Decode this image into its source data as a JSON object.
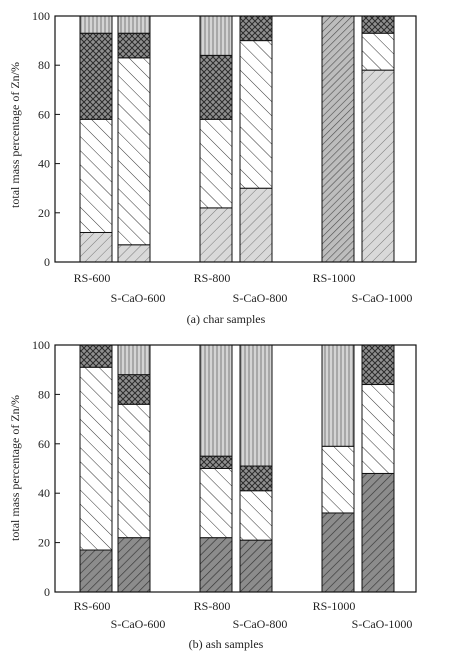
{
  "chart_data": [
    {
      "type": "bar",
      "stacked": true,
      "caption": "(a) char samples",
      "ylabel": "total mass percentage of Zn/%",
      "ylim": [
        0,
        100
      ],
      "yticks": [
        0,
        20,
        40,
        60,
        80,
        100
      ],
      "grid": false,
      "legend": "none",
      "categories": [
        "RS-600",
        "S-CaO-600",
        "RS-800",
        "S-CaO-800",
        "RS-1000",
        "S-CaO-1000"
      ],
      "series": [
        {
          "pattern": "light-diagonal",
          "values": [
            12,
            7,
            22,
            30,
            0,
            78
          ]
        },
        {
          "pattern": "dense-diagonal",
          "values": [
            0,
            0,
            0,
            0,
            100,
            0
          ]
        },
        {
          "pattern": "backslash",
          "values": [
            46,
            76,
            36,
            60,
            0,
            15
          ]
        },
        {
          "pattern": "crosshatch",
          "values": [
            35,
            10,
            26,
            10,
            0,
            7
          ]
        },
        {
          "pattern": "vertical",
          "values": [
            7,
            7,
            16,
            0,
            0,
            0
          ]
        }
      ]
    },
    {
      "type": "bar",
      "stacked": true,
      "caption": "(b) ash samples",
      "ylabel": "total mass percentage of Zn/%",
      "ylim": [
        0,
        100
      ],
      "yticks": [
        0,
        20,
        40,
        60,
        80,
        100
      ],
      "grid": false,
      "legend": "none",
      "categories": [
        "RS-600",
        "S-CaO-600",
        "RS-800",
        "S-CaO-800",
        "RS-1000",
        "S-CaO-1000"
      ],
      "series": [
        {
          "pattern": "dark-diagonal",
          "values": [
            17,
            22,
            22,
            21,
            32,
            48
          ]
        },
        {
          "pattern": "backslash",
          "values": [
            74,
            54,
            28,
            20,
            27,
            36
          ]
        },
        {
          "pattern": "crosshatch",
          "values": [
            9,
            12,
            5,
            10,
            0,
            16
          ]
        },
        {
          "pattern": "vertical",
          "values": [
            0,
            12,
            45,
            49,
            41,
            0
          ]
        }
      ]
    }
  ]
}
